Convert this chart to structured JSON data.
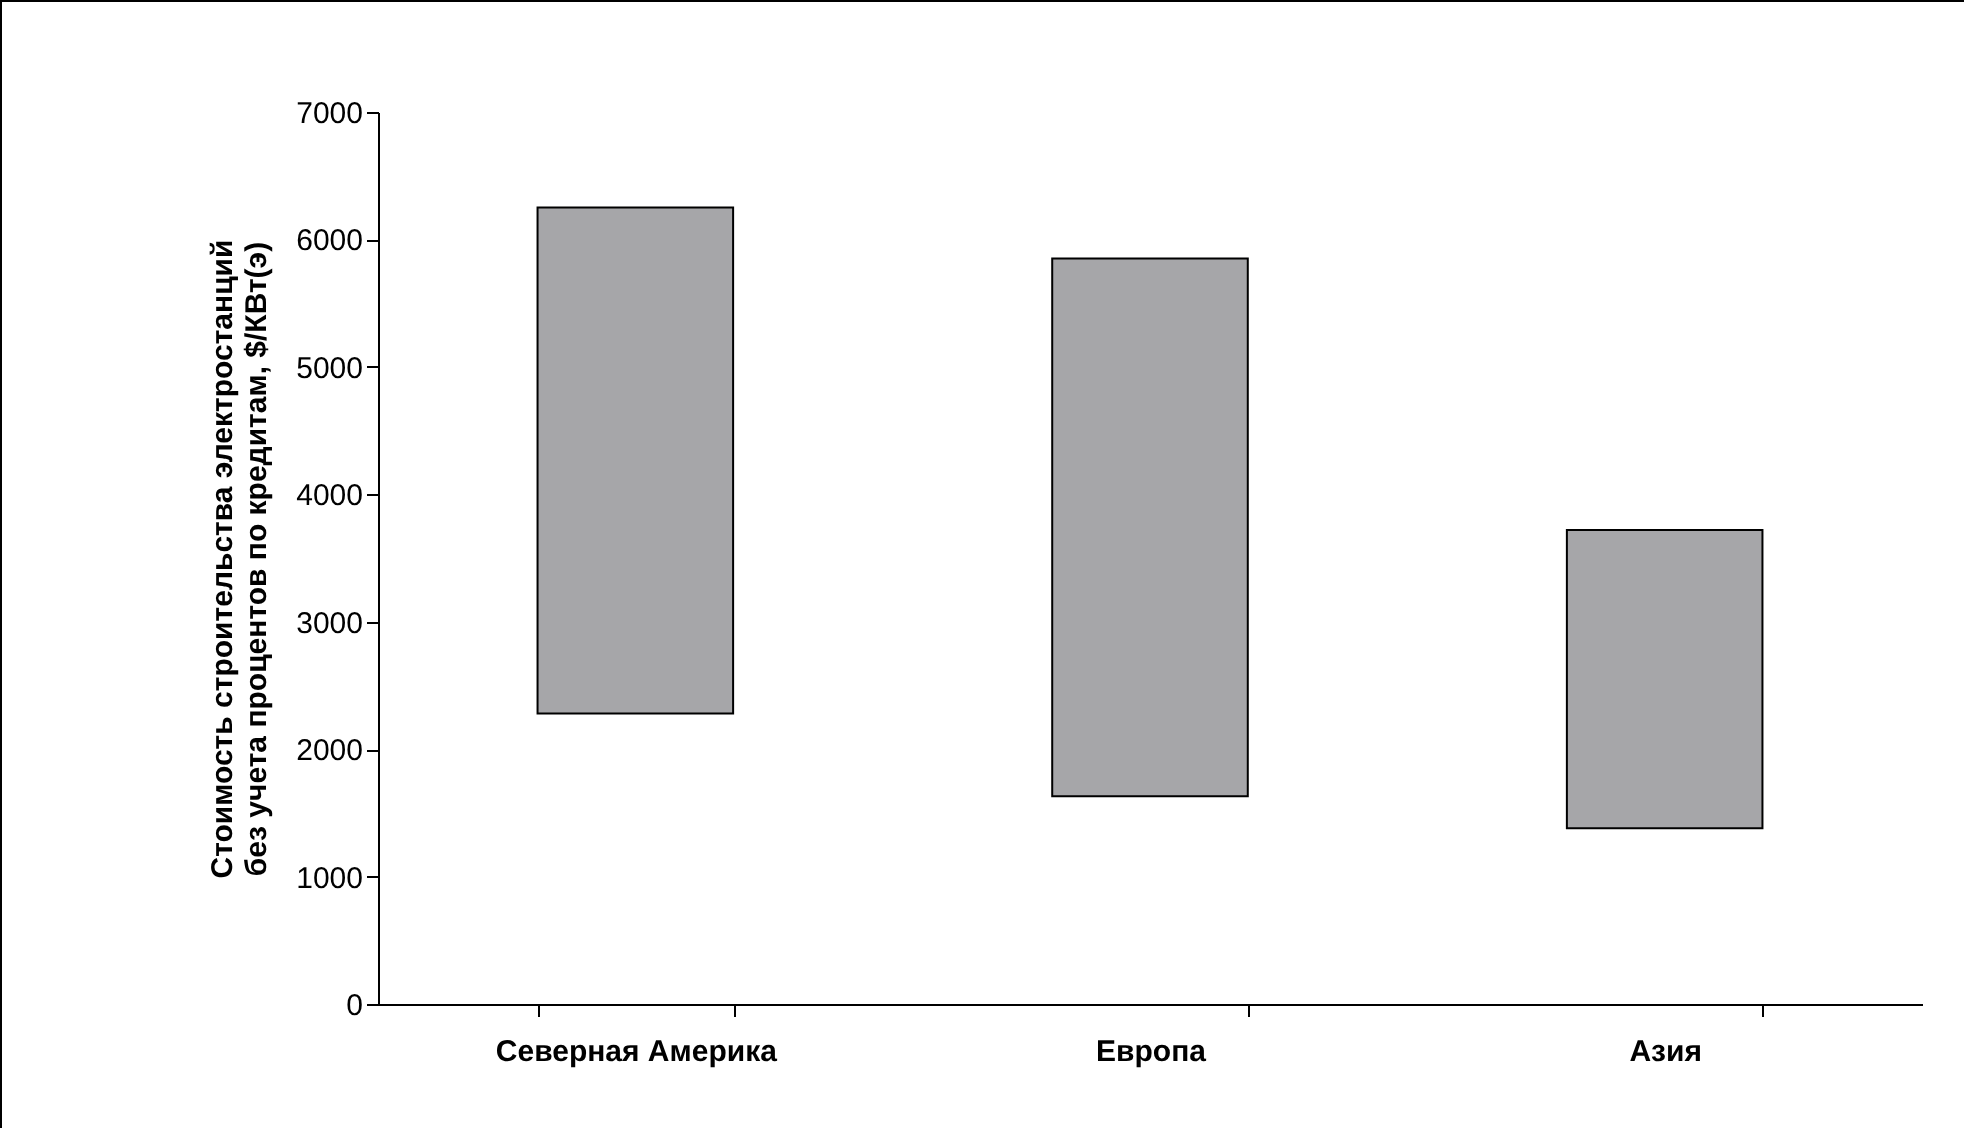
{
  "chart_data": {
    "type": "bar",
    "ylabel": "Стоимость строительства электростанций\nбез учета процентов по кредитам, $/КВт(э)",
    "categories": [
      "Северная Америка",
      "Европа",
      "Азия"
    ],
    "base": [
      2280,
      1630,
      1380
    ],
    "values": [
      3970,
      4220,
      2340
    ],
    "color": "#a6a6a9",
    "ylim": [
      0,
      7000
    ],
    "yticks": [
      0,
      1000,
      2000,
      3000,
      4000,
      5000,
      6000,
      7000
    ],
    "grid": false
  }
}
